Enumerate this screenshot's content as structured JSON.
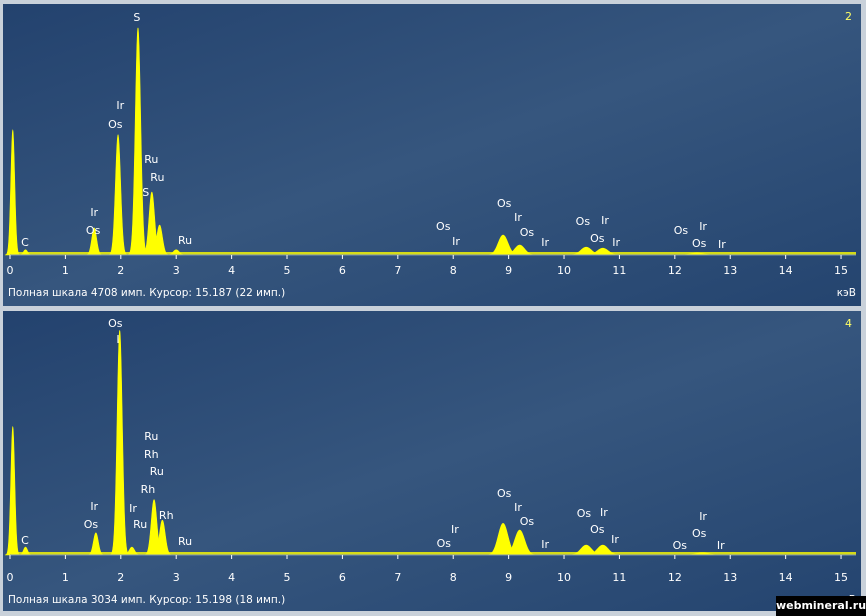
{
  "chart_data": [
    {
      "type": "spectrum",
      "panel_label": "2",
      "status": "Полная шкала 4708 имп. Курсор: 15.187  (22 имп.)",
      "x_label": "кэВ",
      "color": "#ffff00",
      "xlim": [
        0,
        15.27
      ],
      "xticks": [
        0,
        1,
        2,
        3,
        4,
        5,
        6,
        7,
        8,
        9,
        10,
        11,
        12,
        13,
        14,
        15
      ],
      "ylim": [
        0,
        4708
      ],
      "x": [
        0.05,
        0.28,
        1.52,
        1.95,
        2.31,
        2.56,
        2.7,
        3.0,
        8.9,
        9.2,
        10.4,
        10.7,
        12.4
      ],
      "values": [
        2380,
        100,
        515,
        2290,
        4330,
        1200,
        570,
        100,
        380,
        190,
        150,
        130,
        40
      ],
      "annotations": [
        {
          "text": "S",
          "x": 2.29,
          "y": 4517
        },
        {
          "text": "Ir",
          "x": 1.99,
          "y": 2840
        },
        {
          "text": "Os",
          "x": 1.9,
          "y": 2478
        },
        {
          "text": "Ru",
          "x": 2.55,
          "y": 1810
        },
        {
          "text": "Ru",
          "x": 2.66,
          "y": 1468
        },
        {
          "text": "S",
          "x": 2.45,
          "y": 1182
        },
        {
          "text": "Ir",
          "x": 1.52,
          "y": 800
        },
        {
          "text": "Os",
          "x": 1.5,
          "y": 457
        },
        {
          "text": "C",
          "x": 0.27,
          "y": 229
        },
        {
          "text": "Ru",
          "x": 3.16,
          "y": 267
        },
        {
          "text": "Os",
          "x": 7.82,
          "y": 534
        },
        {
          "text": "Ir",
          "x": 8.05,
          "y": 248
        },
        {
          "text": "Os",
          "x": 8.92,
          "y": 972
        },
        {
          "text": "Ir",
          "x": 9.17,
          "y": 705
        },
        {
          "text": "Os",
          "x": 9.33,
          "y": 419
        },
        {
          "text": "Ir",
          "x": 9.66,
          "y": 229
        },
        {
          "text": "Os",
          "x": 10.34,
          "y": 629
        },
        {
          "text": "Ir",
          "x": 10.74,
          "y": 648
        },
        {
          "text": "Os",
          "x": 10.6,
          "y": 305
        },
        {
          "text": "Ir",
          "x": 10.94,
          "y": 229
        },
        {
          "text": "Os",
          "x": 12.11,
          "y": 457
        },
        {
          "text": "Ir",
          "x": 12.51,
          "y": 534
        },
        {
          "text": "Os",
          "x": 12.44,
          "y": 210
        },
        {
          "text": "Ir",
          "x": 12.85,
          "y": 191
        }
      ]
    },
    {
      "type": "spectrum",
      "panel_label": "4",
      "status": "Полная шкала 3034 имп. Курсор: 15.198  (18 имп.)",
      "x_label": "кэВ",
      "color": "#ffff00",
      "xlim": [
        0,
        15.27
      ],
      "xticks": [
        0,
        1,
        2,
        3,
        4,
        5,
        6,
        7,
        8,
        9,
        10,
        11,
        12,
        13,
        14,
        15
      ],
      "ylim": [
        0,
        3034
      ],
      "x": [
        0.05,
        0.28,
        1.55,
        1.98,
        2.2,
        2.6,
        2.75,
        8.9,
        9.2,
        10.4,
        10.7,
        12.5
      ],
      "values": [
        1620,
        100,
        280,
        2840,
        100,
        700,
        440,
        400,
        315,
        125,
        125,
        30
      ],
      "annotations": [
        {
          "text": "Os",
          "x": 1.9,
          "y": 2920
        },
        {
          "text": "I",
          "x": 1.95,
          "y": 2718
        },
        {
          "text": "Ru",
          "x": 2.55,
          "y": 1492
        },
        {
          "text": "Rh",
          "x": 2.55,
          "y": 1264
        },
        {
          "text": "Ru",
          "x": 2.65,
          "y": 1049
        },
        {
          "text": "Rh",
          "x": 2.49,
          "y": 822
        },
        {
          "text": "Rh",
          "x": 2.82,
          "y": 493
        },
        {
          "text": "Ir",
          "x": 1.52,
          "y": 607
        },
        {
          "text": "Os",
          "x": 1.46,
          "y": 379
        },
        {
          "text": "Ir",
          "x": 2.22,
          "y": 582
        },
        {
          "text": "Ru",
          "x": 2.35,
          "y": 379
        },
        {
          "text": "C",
          "x": 0.27,
          "y": 177
        },
        {
          "text": "Ru",
          "x": 3.16,
          "y": 164
        },
        {
          "text": "Ir",
          "x": 8.03,
          "y": 316
        },
        {
          "text": "Os",
          "x": 7.83,
          "y": 139
        },
        {
          "text": "Os",
          "x": 8.92,
          "y": 771
        },
        {
          "text": "Ir",
          "x": 9.17,
          "y": 594
        },
        {
          "text": "Os",
          "x": 9.33,
          "y": 417
        },
        {
          "text": "Ir",
          "x": 9.66,
          "y": 126
        },
        {
          "text": "Os",
          "x": 10.36,
          "y": 518
        },
        {
          "text": "Ir",
          "x": 10.72,
          "y": 531
        },
        {
          "text": "Os",
          "x": 10.6,
          "y": 316
        },
        {
          "text": "Ir",
          "x": 10.92,
          "y": 190
        },
        {
          "text": "Os",
          "x": 12.09,
          "y": 114
        },
        {
          "text": "Ir",
          "x": 12.51,
          "y": 480
        },
        {
          "text": "Os",
          "x": 12.44,
          "y": 265
        },
        {
          "text": "Ir",
          "x": 12.83,
          "y": 114
        }
      ]
    }
  ],
  "watermark": "webmineral.ru"
}
